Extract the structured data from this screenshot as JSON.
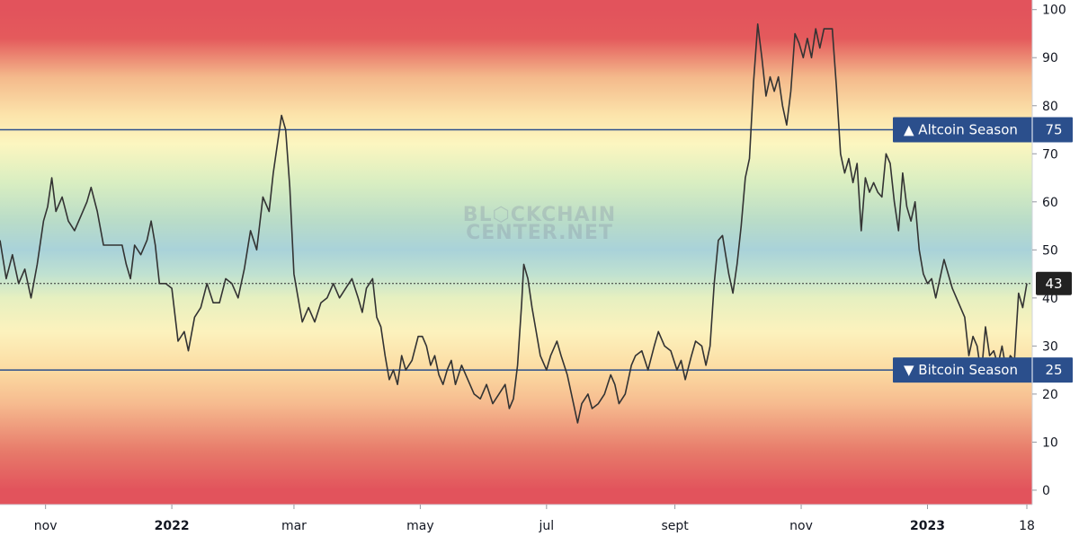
{
  "chart_data": {
    "type": "line",
    "title": "",
    "xlabel": "",
    "ylabel": "",
    "ylim": [
      -3,
      102
    ],
    "yticks": [
      0,
      10,
      20,
      30,
      40,
      50,
      60,
      70,
      80,
      90,
      100
    ],
    "x_ticks": [
      {
        "label": "nov",
        "date": "2021-11-01",
        "bold": false
      },
      {
        "label": "2022",
        "date": "2022-01-01",
        "bold": true
      },
      {
        "label": "mar",
        "date": "2022-03-01",
        "bold": false
      },
      {
        "label": "may",
        "date": "2022-05-01",
        "bold": false
      },
      {
        "label": "jul",
        "date": "2022-07-01",
        "bold": false
      },
      {
        "label": "sept",
        "date": "2022-09-01",
        "bold": false
      },
      {
        "label": "nov",
        "date": "2022-11-01",
        "bold": false
      },
      {
        "label": "2023",
        "date": "2023-01-01",
        "bold": true
      },
      {
        "label": "18",
        "date": "2023-02-18",
        "bold": false
      }
    ],
    "xrange": [
      "2021-10-10",
      "2023-02-18"
    ],
    "current_value": 43,
    "current_label": "43",
    "thresholds": [
      {
        "label": "▲ Altcoin Season",
        "value": 75,
        "value_label": "75"
      },
      {
        "label": "▼ Bitcoin Season",
        "value": 25,
        "value_label": "25"
      }
    ],
    "watermark": [
      "BL⬡CKCHAIN",
      "CENTER.NET"
    ],
    "series": [
      {
        "color": "#333333",
        "points": [
          [
            "2021-10-10",
            52
          ],
          [
            "2021-10-13",
            44
          ],
          [
            "2021-10-16",
            49
          ],
          [
            "2021-10-19",
            43
          ],
          [
            "2021-10-22",
            46
          ],
          [
            "2021-10-25",
            40
          ],
          [
            "2021-10-28",
            47
          ],
          [
            "2021-10-31",
            56
          ],
          [
            "2021-11-02",
            59
          ],
          [
            "2021-11-04",
            65
          ],
          [
            "2021-11-06",
            58
          ],
          [
            "2021-11-09",
            61
          ],
          [
            "2021-11-12",
            56
          ],
          [
            "2021-11-15",
            54
          ],
          [
            "2021-11-18",
            57
          ],
          [
            "2021-11-21",
            60
          ],
          [
            "2021-11-23",
            63
          ],
          [
            "2021-11-26",
            58
          ],
          [
            "2021-11-29",
            51
          ],
          [
            "2021-12-02",
            51
          ],
          [
            "2021-12-05",
            51
          ],
          [
            "2021-12-08",
            51
          ],
          [
            "2021-12-10",
            47
          ],
          [
            "2021-12-12",
            44
          ],
          [
            "2021-12-14",
            51
          ],
          [
            "2021-12-17",
            49
          ],
          [
            "2021-12-20",
            52
          ],
          [
            "2021-12-22",
            56
          ],
          [
            "2021-12-24",
            51
          ],
          [
            "2021-12-26",
            43
          ],
          [
            "2021-12-29",
            43
          ],
          [
            "2022-01-01",
            42
          ],
          [
            "2022-01-04",
            31
          ],
          [
            "2022-01-07",
            33
          ],
          [
            "2022-01-09",
            29
          ],
          [
            "2022-01-12",
            36
          ],
          [
            "2022-01-15",
            38
          ],
          [
            "2022-01-18",
            43
          ],
          [
            "2022-01-21",
            39
          ],
          [
            "2022-01-24",
            39
          ],
          [
            "2022-01-27",
            44
          ],
          [
            "2022-01-30",
            43
          ],
          [
            "2022-02-02",
            40
          ],
          [
            "2022-02-05",
            46
          ],
          [
            "2022-02-08",
            54
          ],
          [
            "2022-02-11",
            50
          ],
          [
            "2022-02-14",
            61
          ],
          [
            "2022-02-17",
            58
          ],
          [
            "2022-02-19",
            66
          ],
          [
            "2022-02-21",
            72
          ],
          [
            "2022-02-23",
            78
          ],
          [
            "2022-02-25",
            75
          ],
          [
            "2022-02-27",
            63
          ],
          [
            "2022-03-01",
            45
          ],
          [
            "2022-03-03",
            40
          ],
          [
            "2022-03-05",
            35
          ],
          [
            "2022-03-08",
            38
          ],
          [
            "2022-03-11",
            35
          ],
          [
            "2022-03-14",
            39
          ],
          [
            "2022-03-17",
            40
          ],
          [
            "2022-03-20",
            43
          ],
          [
            "2022-03-23",
            40
          ],
          [
            "2022-03-26",
            42
          ],
          [
            "2022-03-29",
            44
          ],
          [
            "2022-04-01",
            40
          ],
          [
            "2022-04-03",
            37
          ],
          [
            "2022-04-05",
            42
          ],
          [
            "2022-04-08",
            44
          ],
          [
            "2022-04-10",
            36
          ],
          [
            "2022-04-12",
            34
          ],
          [
            "2022-04-14",
            28
          ],
          [
            "2022-04-16",
            23
          ],
          [
            "2022-04-18",
            25
          ],
          [
            "2022-04-20",
            22
          ],
          [
            "2022-04-22",
            28
          ],
          [
            "2022-04-24",
            25
          ],
          [
            "2022-04-27",
            27
          ],
          [
            "2022-04-30",
            32
          ],
          [
            "2022-05-02",
            32
          ],
          [
            "2022-05-04",
            30
          ],
          [
            "2022-05-06",
            26
          ],
          [
            "2022-05-08",
            28
          ],
          [
            "2022-05-10",
            24
          ],
          [
            "2022-05-12",
            22
          ],
          [
            "2022-05-14",
            25
          ],
          [
            "2022-05-16",
            27
          ],
          [
            "2022-05-18",
            22
          ],
          [
            "2022-05-21",
            26
          ],
          [
            "2022-05-24",
            23
          ],
          [
            "2022-05-27",
            20
          ],
          [
            "2022-05-30",
            19
          ],
          [
            "2022-06-02",
            22
          ],
          [
            "2022-06-05",
            18
          ],
          [
            "2022-06-08",
            20
          ],
          [
            "2022-06-11",
            22
          ],
          [
            "2022-06-13",
            17
          ],
          [
            "2022-06-15",
            19
          ],
          [
            "2022-06-17",
            26
          ],
          [
            "2022-06-19",
            39
          ],
          [
            "2022-06-20",
            47
          ],
          [
            "2022-06-22",
            44
          ],
          [
            "2022-06-24",
            38
          ],
          [
            "2022-06-26",
            33
          ],
          [
            "2022-06-28",
            28
          ],
          [
            "2022-07-01",
            25
          ],
          [
            "2022-07-03",
            28
          ],
          [
            "2022-07-06",
            31
          ],
          [
            "2022-07-08",
            28
          ],
          [
            "2022-07-11",
            24
          ],
          [
            "2022-07-14",
            18
          ],
          [
            "2022-07-16",
            14
          ],
          [
            "2022-07-18",
            18
          ],
          [
            "2022-07-21",
            20
          ],
          [
            "2022-07-23",
            17
          ],
          [
            "2022-07-26",
            18
          ],
          [
            "2022-07-29",
            20
          ],
          [
            "2022-08-01",
            24
          ],
          [
            "2022-08-03",
            22
          ],
          [
            "2022-08-05",
            18
          ],
          [
            "2022-08-08",
            20
          ],
          [
            "2022-08-11",
            26
          ],
          [
            "2022-08-13",
            28
          ],
          [
            "2022-08-16",
            29
          ],
          [
            "2022-08-19",
            25
          ],
          [
            "2022-08-22",
            30
          ],
          [
            "2022-08-24",
            33
          ],
          [
            "2022-08-27",
            30
          ],
          [
            "2022-08-30",
            29
          ],
          [
            "2022-09-02",
            25
          ],
          [
            "2022-09-04",
            27
          ],
          [
            "2022-09-06",
            23
          ],
          [
            "2022-09-09",
            28
          ],
          [
            "2022-09-11",
            31
          ],
          [
            "2022-09-14",
            30
          ],
          [
            "2022-09-16",
            26
          ],
          [
            "2022-09-18",
            30
          ],
          [
            "2022-09-20",
            43
          ],
          [
            "2022-09-22",
            52
          ],
          [
            "2022-09-24",
            53
          ],
          [
            "2022-09-27",
            45
          ],
          [
            "2022-09-29",
            41
          ],
          [
            "2022-10-01",
            47
          ],
          [
            "2022-10-03",
            55
          ],
          [
            "2022-10-05",
            65
          ],
          [
            "2022-10-07",
            69
          ],
          [
            "2022-10-09",
            85
          ],
          [
            "2022-10-11",
            97
          ],
          [
            "2022-10-13",
            90
          ],
          [
            "2022-10-15",
            82
          ],
          [
            "2022-10-17",
            86
          ],
          [
            "2022-10-19",
            83
          ],
          [
            "2022-10-21",
            86
          ],
          [
            "2022-10-23",
            80
          ],
          [
            "2022-10-25",
            76
          ],
          [
            "2022-10-27",
            83
          ],
          [
            "2022-10-29",
            95
          ],
          [
            "2022-10-31",
            93
          ],
          [
            "2022-11-02",
            90
          ],
          [
            "2022-11-04",
            94
          ],
          [
            "2022-11-06",
            90
          ],
          [
            "2022-11-08",
            96
          ],
          [
            "2022-11-10",
            92
          ],
          [
            "2022-11-12",
            96
          ],
          [
            "2022-11-14",
            96
          ],
          [
            "2022-11-16",
            96
          ],
          [
            "2022-11-18",
            84
          ],
          [
            "2022-11-20",
            70
          ],
          [
            "2022-11-22",
            66
          ],
          [
            "2022-11-24",
            69
          ],
          [
            "2022-11-26",
            64
          ],
          [
            "2022-11-28",
            68
          ],
          [
            "2022-11-30",
            54
          ],
          [
            "2022-12-02",
            65
          ],
          [
            "2022-12-04",
            62
          ],
          [
            "2022-12-06",
            64
          ],
          [
            "2022-12-08",
            62
          ],
          [
            "2022-12-10",
            61
          ],
          [
            "2022-12-12",
            70
          ],
          [
            "2022-12-14",
            68
          ],
          [
            "2022-12-16",
            60
          ],
          [
            "2022-12-18",
            54
          ],
          [
            "2022-12-20",
            66
          ],
          [
            "2022-12-22",
            59
          ],
          [
            "2022-12-24",
            56
          ],
          [
            "2022-12-26",
            60
          ],
          [
            "2022-12-28",
            50
          ],
          [
            "2022-12-30",
            45
          ],
          [
            "2023-01-01",
            43
          ],
          [
            "2023-01-03",
            44
          ],
          [
            "2023-01-05",
            40
          ],
          [
            "2023-01-07",
            44
          ],
          [
            "2023-01-09",
            48
          ],
          [
            "2023-01-11",
            45
          ],
          [
            "2023-01-13",
            42
          ],
          [
            "2023-01-15",
            40
          ],
          [
            "2023-01-17",
            38
          ],
          [
            "2023-01-19",
            36
          ],
          [
            "2023-01-21",
            28
          ],
          [
            "2023-01-23",
            32
          ],
          [
            "2023-01-25",
            30
          ],
          [
            "2023-01-27",
            24
          ],
          [
            "2023-01-29",
            34
          ],
          [
            "2023-01-31",
            28
          ],
          [
            "2023-02-02",
            29
          ],
          [
            "2023-02-04",
            26
          ],
          [
            "2023-02-06",
            30
          ],
          [
            "2023-02-08",
            25
          ],
          [
            "2023-02-10",
            28
          ],
          [
            "2023-02-12",
            27
          ],
          [
            "2023-02-14",
            41
          ],
          [
            "2023-02-16",
            38
          ],
          [
            "2023-02-18",
            43
          ]
        ]
      }
    ]
  }
}
